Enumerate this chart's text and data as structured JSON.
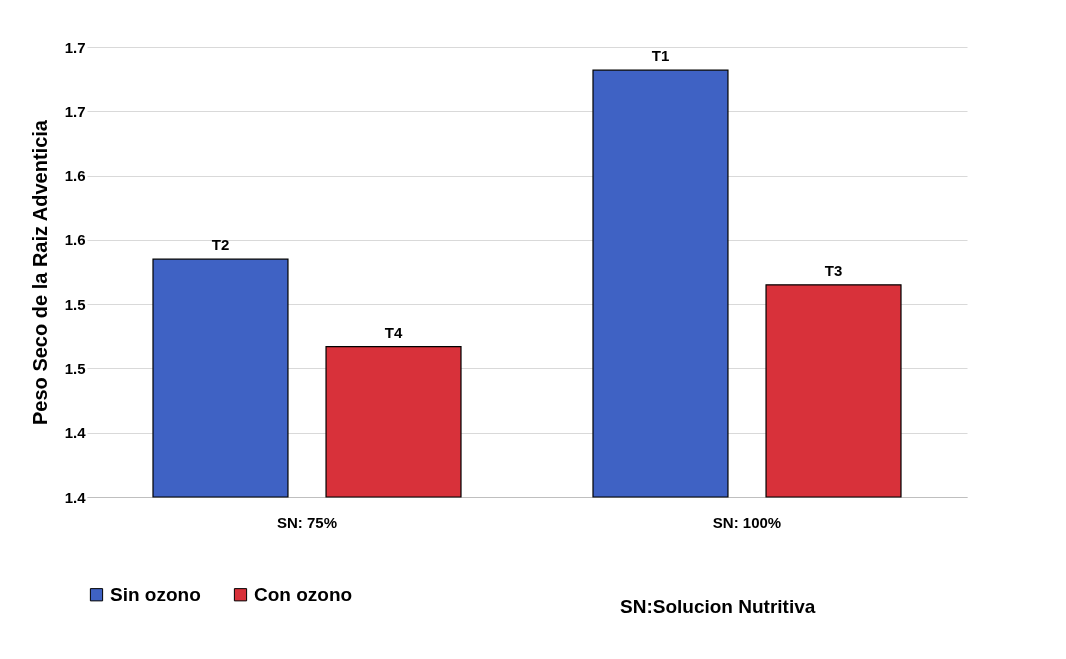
{
  "chart_data": {
    "type": "bar",
    "ylabel": "Peso Seco de la Raiz Adventicia",
    "categories": [
      "SN: 75%",
      "SN: 100%"
    ],
    "series": [
      {
        "name": "Sin ozono",
        "color": "#3f62c4",
        "values": [
          1.535,
          1.682
        ],
        "value_labels": [
          "T2",
          "T1"
        ]
      },
      {
        "name": "Con ozono",
        "color": "#d8313a",
        "values": [
          1.467,
          1.515
        ],
        "value_labels": [
          "T4",
          "T3"
        ]
      }
    ],
    "ylim": [
      1.35,
      1.7
    ],
    "yticks": [
      {
        "value": 1.35,
        "label": "1.4"
      },
      {
        "value": 1.4,
        "label": "1.4"
      },
      {
        "value": 1.45,
        "label": "1.5"
      },
      {
        "value": 1.5,
        "label": "1.5"
      },
      {
        "value": 1.55,
        "label": "1.6"
      },
      {
        "value": 1.6,
        "label": "1.6"
      },
      {
        "value": 1.65,
        "label": "1.7"
      },
      {
        "value": 1.7,
        "label": "1.7"
      }
    ],
    "grid": "y",
    "legend": "bottom",
    "annotations": [
      "SN:Solucion Nutritiva"
    ]
  }
}
